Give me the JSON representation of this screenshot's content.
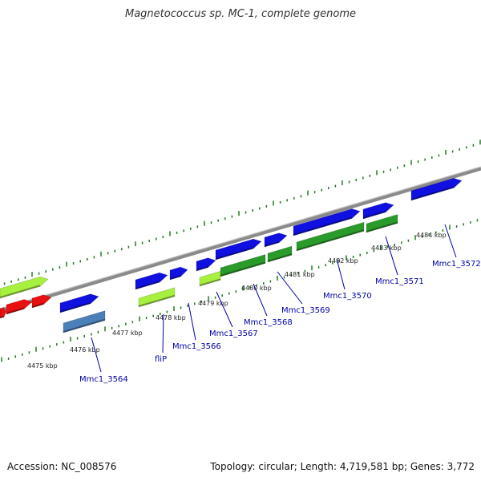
{
  "title": "Magnetococcus sp. MC-1, complete genome",
  "footer": {
    "accession": "Accession: NC_008576",
    "summary": "Topology: circular; Length: 4,719,581 bp; Genes: 3,772"
  },
  "colors": {
    "backbone": "#8a8a8a",
    "tick": "#1f7a1f",
    "gene_label": "#0000a8",
    "cds_blue": "#1010e0",
    "rna_red": "#e81010",
    "lime": "#a8f040",
    "green": "#2a9a2a",
    "steel": "#4a7fb8"
  },
  "scale_labels": [
    "4475 kbp",
    "4476 kbp",
    "4477 kbp",
    "4478 kbp",
    "4479 kbp",
    "4480 kbp",
    "4481 kbp",
    "4482 kbp",
    "4483 kbp",
    "4484 kbp"
  ],
  "gene_labels": [
    "Mmc1_3564",
    "fliP",
    "Mmc1_3566",
    "Mmc1_3567",
    "Mmc1_3568",
    "Mmc1_3569",
    "Mmc1_3570",
    "Mmc1_3571",
    "Mmc1_3572"
  ]
}
